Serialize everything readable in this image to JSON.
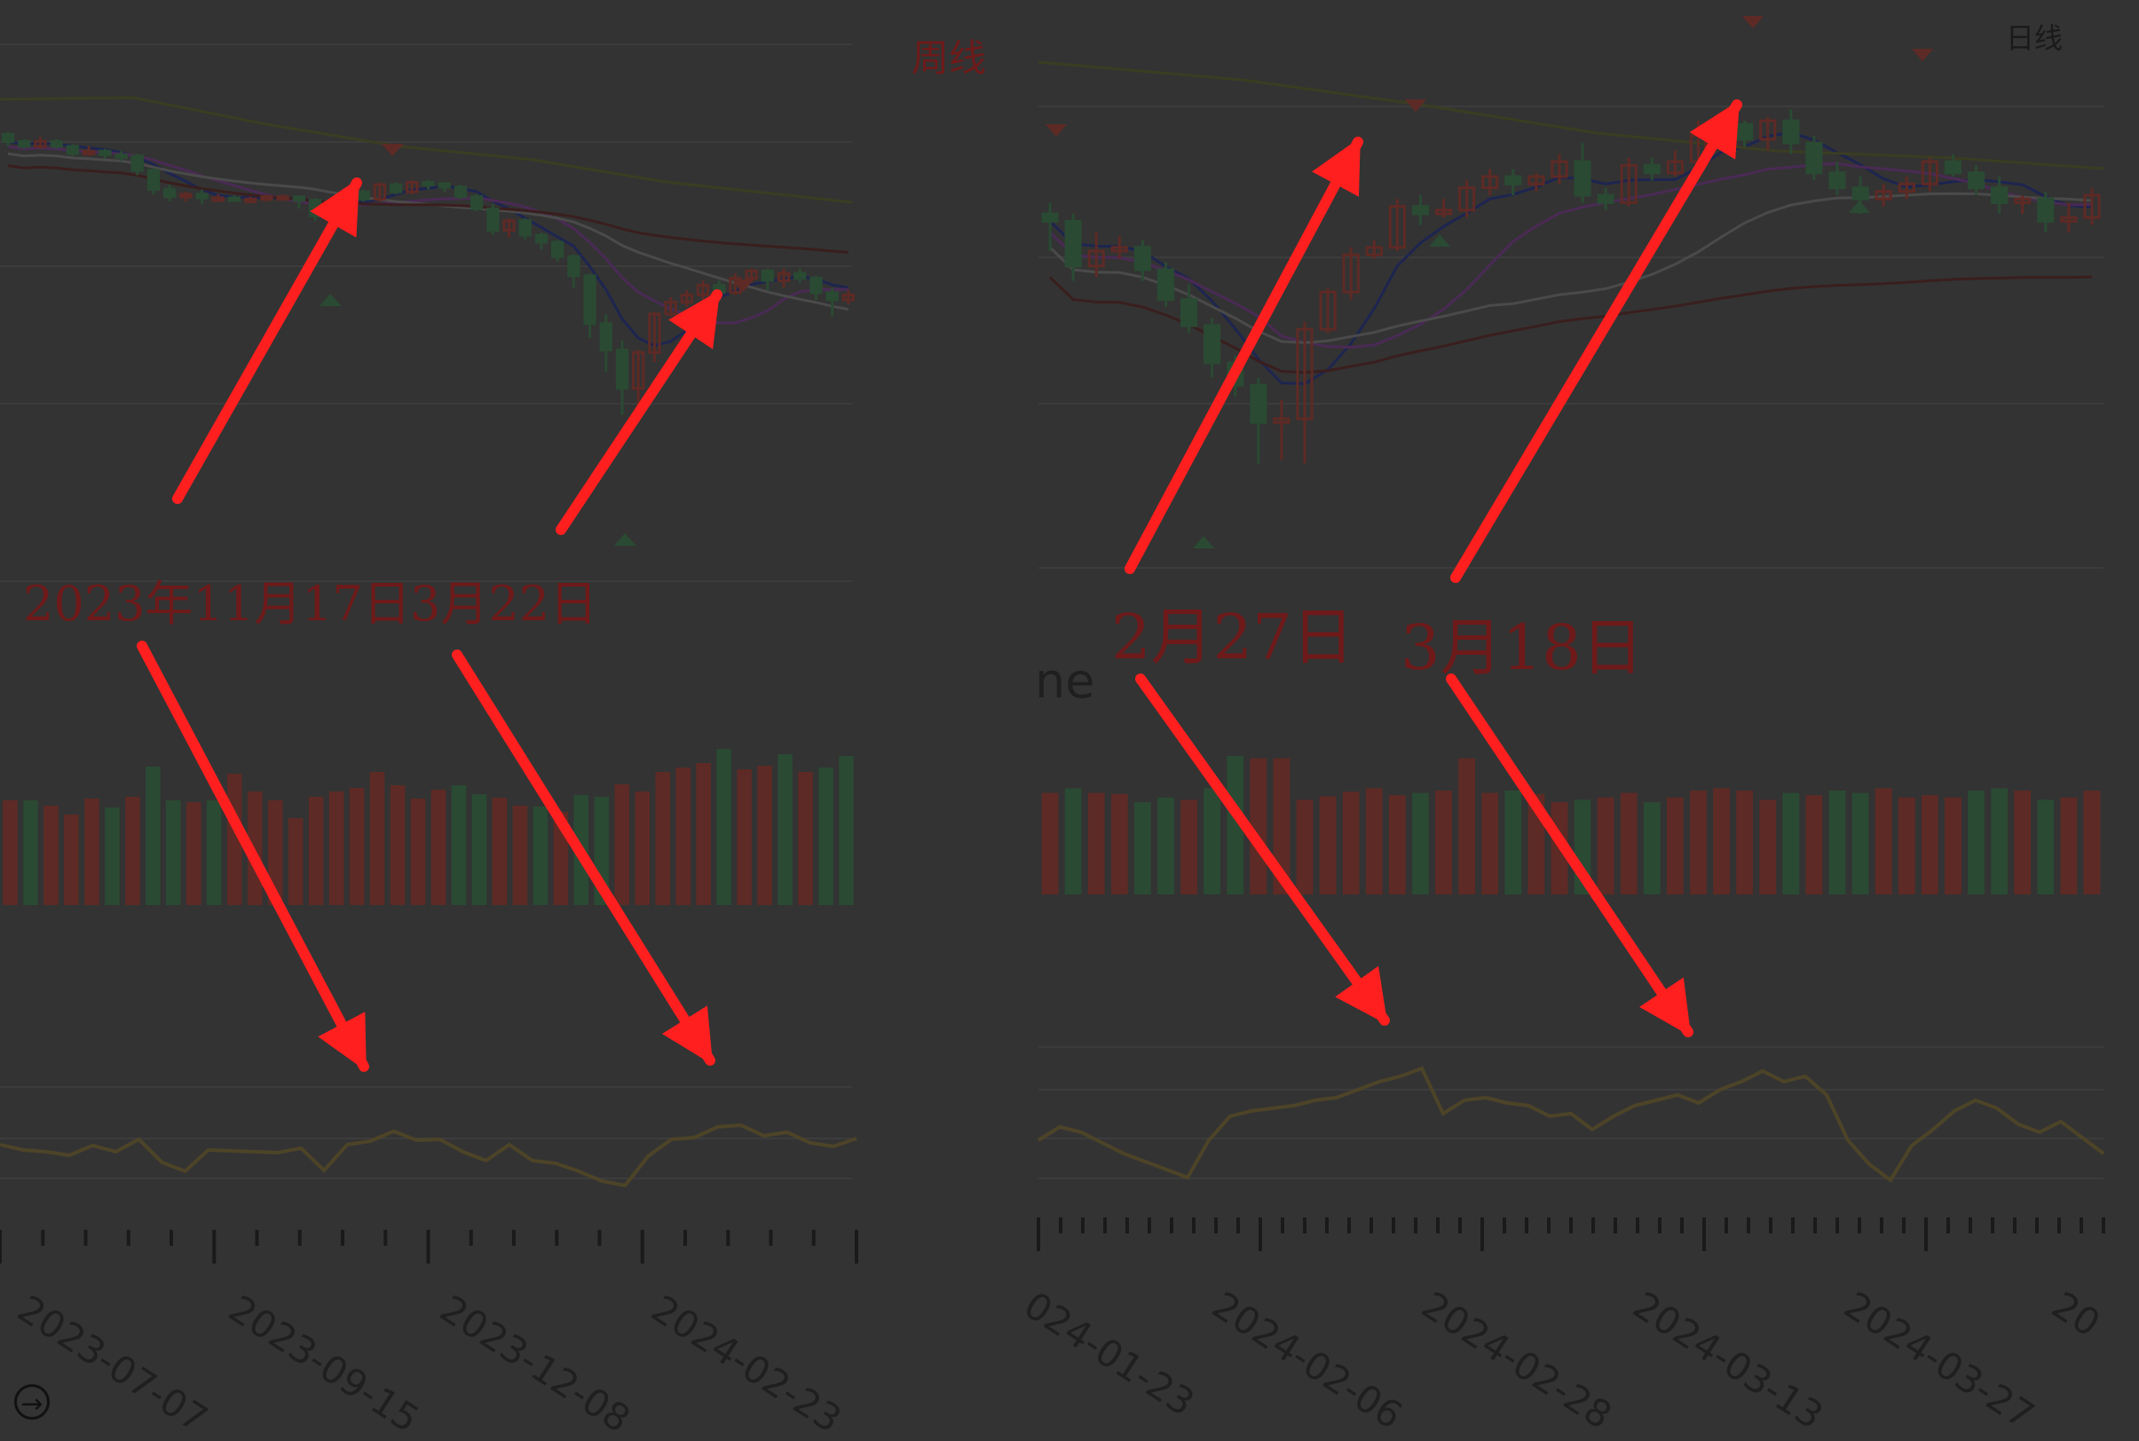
{
  "left_panel": {
    "period_label": "周线",
    "annotation_1": "2023年11月17日",
    "annotation_2": "3月22日",
    "x_ticks": [
      "2023-07-07",
      "2023-09-15",
      "2023-12-08",
      "2024-02-23"
    ]
  },
  "right_panel": {
    "period_label": "日线",
    "annotation_1": "2月27日",
    "annotation_2": "3月18日",
    "volume_label_fragment": "ne",
    "x_ticks": [
      "024-01-23",
      "2024-02-06",
      "2024-02-28",
      "2024-03-13",
      "2024-03-27",
      "20"
    ]
  },
  "nav": {
    "icon": "arrow-right-circle-icon"
  },
  "colors": {
    "background": "#333333",
    "up": "#5e2a25",
    "down": "#2a4a33",
    "arrow": "#ff1f1f",
    "line": "#4d4428"
  },
  "chart_data": [
    {
      "type": "candlestick",
      "period": "weekly",
      "x_ticks": [
        "2023-07-07",
        "2023-09-15",
        "2023-12-08",
        "2024-02-23"
      ],
      "ohlc": [
        [
          110,
          104,
          112,
          100
        ],
        [
          104,
          100,
          106,
          98
        ],
        [
          100,
          104,
          108,
          98
        ],
        [
          104,
          100,
          106,
          98
        ],
        [
          100,
          94,
          102,
          92
        ],
        [
          94,
          96,
          100,
          92
        ],
        [
          96,
          93,
          98,
          90
        ],
        [
          93,
          92,
          96,
          88
        ],
        [
          92,
          80,
          94,
          76
        ],
        [
          80,
          64,
          82,
          60
        ],
        [
          64,
          58,
          68,
          54
        ],
        [
          58,
          60,
          62,
          54
        ],
        [
          60,
          57,
          64,
          52
        ],
        [
          57,
          57,
          60,
          54
        ],
        [
          57,
          56,
          59,
          54
        ],
        [
          56,
          56,
          58,
          54
        ],
        [
          56,
          58,
          60,
          54
        ],
        [
          58,
          58,
          60,
          56
        ],
        [
          58,
          55,
          59,
          48
        ],
        [
          55,
          42,
          57,
          38
        ],
        [
          42,
          52,
          54,
          36
        ],
        [
          52,
          62,
          64,
          50
        ],
        [
          62,
          56,
          64,
          54
        ],
        [
          56,
          68,
          70,
          54
        ],
        [
          68,
          62,
          70,
          60
        ],
        [
          62,
          70,
          72,
          60
        ],
        [
          70,
          69,
          72,
          64
        ],
        [
          69,
          66,
          70,
          62
        ],
        [
          66,
          58,
          68,
          56
        ],
        [
          58,
          48,
          60,
          46
        ],
        [
          48,
          30,
          52,
          26
        ],
        [
          30,
          38,
          40,
          24
        ],
        [
          38,
          26,
          40,
          22
        ],
        [
          26,
          20,
          28,
          14
        ],
        [
          20,
          8,
          22,
          4
        ],
        [
          8,
          -8,
          10,
          -18
        ],
        [
          -8,
          -48,
          -6,
          -60
        ],
        [
          -48,
          -70,
          -40,
          -88
        ],
        [
          -70,
          -102,
          -62,
          -124
        ],
        [
          -102,
          -72,
          -70,
          -116
        ],
        [
          -72,
          -40,
          -38,
          -80
        ],
        [
          -40,
          -30,
          -26,
          -42
        ],
        [
          -30,
          -24,
          -20,
          -34
        ],
        [
          -24,
          -16,
          -12,
          -30
        ],
        [
          -16,
          -22,
          -12,
          -26
        ],
        [
          -22,
          -10,
          -6,
          -24
        ],
        [
          -10,
          -4,
          -2,
          -14
        ],
        [
          -4,
          -12,
          -2,
          -20
        ],
        [
          -12,
          -6,
          -2,
          -18
        ],
        [
          -6,
          -10,
          -2,
          -14
        ],
        [
          -10,
          -22,
          -8,
          -28
        ],
        [
          -22,
          -28,
          -18,
          -42
        ],
        [
          -28,
          -24,
          -20,
          -32
        ]
      ],
      "volume": [
        118,
        118,
        112,
        102,
        120,
        110,
        122,
        156,
        118,
        116,
        118,
        148,
        128,
        118,
        98,
        122,
        128,
        132,
        150,
        135,
        120,
        130,
        135,
        125,
        121,
        112,
        111,
        105,
        124,
        122,
        136,
        128,
        150,
        155,
        160,
        176,
        153,
        157,
        170,
        150,
        155,
        168
      ],
      "indicator": [
        50,
        44,
        42,
        38,
        49,
        42,
        56,
        30,
        20,
        44,
        43,
        42,
        41,
        46,
        21,
        50,
        54,
        65,
        55,
        56,
        42,
        32,
        50,
        32,
        29,
        20,
        9,
        4,
        37,
        56,
        58,
        70,
        72,
        60,
        64,
        52,
        48,
        57
      ]
    },
    {
      "type": "candlestick",
      "period": "daily",
      "x_ticks": [
        "024-01-23",
        "2024-02-06",
        "2024-02-28",
        "2024-03-13",
        "2024-03-27",
        "20"
      ],
      "ohlc": [
        [
          90,
          86,
          96,
          70
        ],
        [
          86,
          62,
          90,
          54
        ],
        [
          62,
          70,
          80,
          56
        ],
        [
          70,
          72,
          78,
          66
        ],
        [
          72,
          60,
          76,
          54
        ],
        [
          60,
          44,
          64,
          40
        ],
        [
          44,
          30,
          52,
          26
        ],
        [
          30,
          10,
          34,
          2
        ],
        [
          10,
          -2,
          14,
          -8
        ],
        [
          -2,
          -22,
          2,
          -44
        ],
        [
          -22,
          -20,
          -10,
          -42
        ],
        [
          -20,
          28,
          32,
          -44
        ],
        [
          28,
          48,
          50,
          26
        ],
        [
          48,
          68,
          72,
          44
        ],
        [
          68,
          72,
          76,
          66
        ],
        [
          72,
          94,
          98,
          70
        ],
        [
          94,
          90,
          100,
          84
        ],
        [
          90,
          92,
          98,
          88
        ],
        [
          92,
          104,
          108,
          88
        ],
        [
          104,
          110,
          114,
          100
        ],
        [
          110,
          106,
          114,
          100
        ],
        [
          106,
          110,
          112,
          102
        ],
        [
          110,
          118,
          122,
          106
        ],
        [
          118,
          100,
          128,
          96
        ],
        [
          100,
          96,
          104,
          92
        ],
        [
          96,
          116,
          120,
          94
        ],
        [
          116,
          112,
          120,
          108
        ],
        [
          112,
          118,
          124,
          110
        ],
        [
          118,
          132,
          140,
          112
        ],
        [
          132,
          138,
          140,
          126
        ],
        [
          138,
          130,
          140,
          126
        ],
        [
          130,
          140,
          142,
          124
        ],
        [
          140,
          128,
          146,
          122
        ],
        [
          128,
          112,
          132,
          108
        ],
        [
          112,
          104,
          118,
          100
        ],
        [
          104,
          98,
          110,
          90
        ],
        [
          98,
          102,
          106,
          94
        ],
        [
          102,
          106,
          110,
          98
        ],
        [
          106,
          118,
          120,
          102
        ],
        [
          118,
          112,
          122,
          110
        ],
        [
          112,
          104,
          116,
          100
        ],
        [
          104,
          96,
          110,
          90
        ],
        [
          96,
          98,
          100,
          90
        ],
        [
          98,
          86,
          102,
          80
        ],
        [
          86,
          88,
          96,
          80
        ],
        [
          88,
          100,
          104,
          84
        ]
      ],
      "volume": [
        88,
        92,
        88,
        87,
        80,
        84,
        82,
        92,
        120,
        118,
        118,
        82,
        85,
        89,
        92,
        86,
        88,
        90,
        118,
        88,
        90,
        87,
        80,
        82,
        84,
        88,
        80,
        84,
        90,
        92,
        90,
        82,
        88,
        86,
        90,
        88,
        92,
        84,
        86,
        84,
        90,
        92,
        90,
        82,
        84,
        90
      ],
      "indicator": [
        40,
        50,
        46,
        38,
        30,
        24,
        18,
        12,
        40,
        58,
        62,
        64,
        66,
        70,
        72,
        78,
        84,
        88,
        94,
        60,
        70,
        72,
        68,
        66,
        58,
        60,
        48,
        58,
        66,
        70,
        74,
        68,
        78,
        84,
        92,
        84,
        88,
        74,
        40,
        22,
        10,
        36,
        48,
        62,
        70,
        64,
        52,
        46,
        54,
        42,
        30
      ]
    }
  ]
}
